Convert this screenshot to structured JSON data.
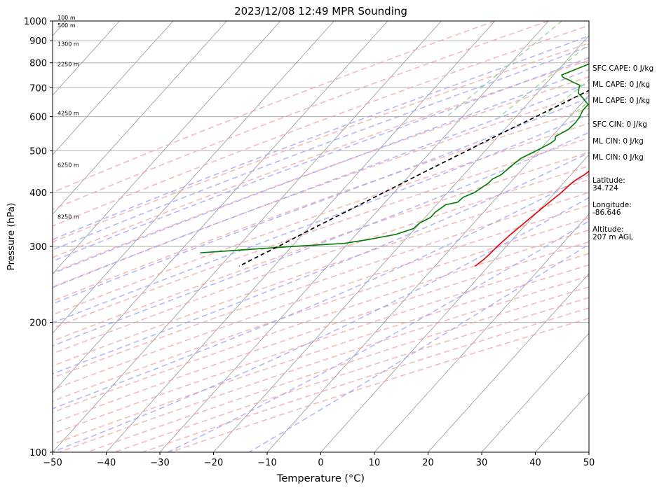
{
  "chart_data": {
    "type": "line",
    "title": "2023/12/08 12:49 MPR Sounding",
    "xlabel": "Temperature (°C)",
    "ylabel": "Pressure (hPa)",
    "xlim": [
      -50,
      50
    ],
    "ylim": [
      1000,
      100
    ],
    "y_scale": "log",
    "skew": true,
    "grid": true,
    "x_ticks": [
      "−50",
      "−40",
      "−30",
      "−20",
      "−10",
      "0",
      "10",
      "20",
      "30",
      "40",
      "50"
    ],
    "x_tick_values": [
      -50,
      -40,
      -30,
      -20,
      -10,
      0,
      10,
      20,
      30,
      40,
      50
    ],
    "y_ticks": [
      "1000",
      "900",
      "800",
      "700",
      "600",
      "500",
      "400",
      "300",
      "200",
      "100"
    ],
    "y_tick_values": [
      1000,
      900,
      800,
      700,
      600,
      500,
      400,
      300,
      200,
      100
    ],
    "series": [
      {
        "color": "#e8080c",
        "style": "solid",
        "points": [
          [
            1000,
            6.3
          ],
          [
            980,
            5.0
          ],
          [
            960,
            4.0
          ],
          [
            940,
            3.7
          ],
          [
            920,
            4.0
          ],
          [
            910,
            5.4
          ],
          [
            895,
            8.2
          ],
          [
            880,
            9.9
          ],
          [
            860,
            11.0
          ],
          [
            840,
            11.9
          ],
          [
            820,
            12.6
          ],
          [
            800,
            13.0
          ],
          [
            780,
            13.0
          ],
          [
            760,
            12.6
          ],
          [
            740,
            11.9
          ],
          [
            720,
            11.0
          ],
          [
            700,
            9.7
          ],
          [
            680,
            8.3
          ],
          [
            660,
            7.7
          ],
          [
            640,
            6.9
          ],
          [
            620,
            6.1
          ],
          [
            600,
            5.8
          ],
          [
            580,
            5.9
          ],
          [
            560,
            5.8
          ],
          [
            540,
            5.6
          ],
          [
            520,
            5.2
          ],
          [
            500,
            4.6
          ],
          [
            480,
            4.0
          ],
          [
            460,
            3.2
          ],
          [
            440,
            2.5
          ],
          [
            430,
            1.9
          ],
          [
            420,
            1.5
          ],
          [
            400,
            1.2
          ],
          [
            380,
            0.6
          ],
          [
            360,
            0.0
          ],
          [
            340,
            -0.6
          ],
          [
            320,
            -1.2
          ],
          [
            300,
            -1.7
          ],
          [
            290,
            -1.8
          ],
          [
            280,
            -2.0
          ],
          [
            270,
            -2.5
          ]
        ]
      },
      {
        "color": "#0a7d0a",
        "style": "solid",
        "points": [
          [
            1000,
            -4.4
          ],
          [
            990,
            -6.2
          ],
          [
            980,
            -7.2
          ],
          [
            970,
            -6.9
          ],
          [
            960,
            -6.8
          ],
          [
            950,
            -7.0
          ],
          [
            940,
            -6.6
          ],
          [
            930,
            -6.6
          ],
          [
            920,
            -7.1
          ],
          [
            900,
            -7.8
          ],
          [
            880,
            -9.5
          ],
          [
            860,
            -11.5
          ],
          [
            850,
            -12.4
          ],
          [
            840,
            -13.6
          ],
          [
            830,
            -13.7
          ],
          [
            825,
            -12.7
          ],
          [
            820,
            -12.8
          ],
          [
            800,
            -14.9
          ],
          [
            780,
            -16.3
          ],
          [
            760,
            -17.7
          ],
          [
            750,
            -18.5
          ],
          [
            740,
            -17.8
          ],
          [
            730,
            -16.3
          ],
          [
            720,
            -15.0
          ],
          [
            710,
            -13.4
          ],
          [
            700,
            -13.1
          ],
          [
            680,
            -12.3
          ],
          [
            660,
            -10.4
          ],
          [
            640,
            -8.6
          ],
          [
            620,
            -8.6
          ],
          [
            600,
            -8.1
          ],
          [
            580,
            -7.9
          ],
          [
            560,
            -8.1
          ],
          [
            540,
            -9.3
          ],
          [
            530,
            -8.8
          ],
          [
            520,
            -9.1
          ],
          [
            500,
            -10.5
          ],
          [
            480,
            -12.1
          ],
          [
            460,
            -12.6
          ],
          [
            440,
            -13.0
          ],
          [
            430,
            -13.9
          ],
          [
            420,
            -14.0
          ],
          [
            400,
            -15.0
          ],
          [
            390,
            -16.3
          ],
          [
            380,
            -16.5
          ],
          [
            375,
            -18.3
          ],
          [
            360,
            -19.0
          ],
          [
            350,
            -19.0
          ],
          [
            340,
            -20.1
          ],
          [
            330,
            -20.3
          ],
          [
            320,
            -22.6
          ],
          [
            312,
            -26.5
          ],
          [
            305,
            -30.7
          ],
          [
            300,
            -40.0
          ],
          [
            295,
            -48.0
          ],
          [
            290,
            -56.0
          ]
        ]
      },
      {
        "color": "#000000",
        "style": "dashed",
        "points": [
          [
            1000,
            6.3
          ],
          [
            975,
            5.8
          ],
          [
            950,
            4.2
          ],
          [
            925,
            2.0
          ],
          [
            900,
            1.0
          ],
          [
            875,
            0.0
          ],
          [
            850,
            -1.5
          ],
          [
            825,
            -2.9
          ],
          [
            800,
            -4.4
          ],
          [
            775,
            -5.8
          ],
          [
            750,
            -7.3
          ],
          [
            725,
            -8.6
          ],
          [
            700,
            -10.2
          ],
          [
            675,
            -11.7
          ],
          [
            650,
            -13.1
          ],
          [
            625,
            -14.7
          ],
          [
            600,
            -16.3
          ],
          [
            575,
            -18.0
          ],
          [
            550,
            -19.8
          ],
          [
            525,
            -21.6
          ],
          [
            500,
            -23.4
          ],
          [
            475,
            -25.4
          ],
          [
            450,
            -27.5
          ],
          [
            425,
            -29.6
          ],
          [
            400,
            -31.9
          ],
          [
            375,
            -34.3
          ],
          [
            350,
            -36.9
          ],
          [
            325,
            -39.7
          ],
          [
            300,
            -42.5
          ],
          [
            285,
            -44.5
          ],
          [
            270,
            -46.5
          ]
        ]
      }
    ],
    "altitude_labels": [
      {
        "p": 1000,
        "label": "100 m"
      },
      {
        "p": 960,
        "label": "500 m"
      },
      {
        "p": 870,
        "label": "1300 m"
      },
      {
        "p": 780,
        "label": "2250 m"
      },
      {
        "p": 600,
        "label": "4250 m"
      },
      {
        "p": 455,
        "label": "6250 m"
      },
      {
        "p": 345,
        "label": "8250 m"
      }
    ],
    "colors": {
      "temperature": "#e8080c",
      "dewpoint": "#0a7d0a",
      "parcel": "#000000",
      "dry_adiabats": "#f2a3a3",
      "moist_adiabats": "#9f9ff5",
      "mixing_ratio": "#96cf96",
      "isotherms": "#999999"
    }
  },
  "info_panel": {
    "sfc_cape": "SFC CAPE: 0 J/kg",
    "ml_cape_1": "ML CAPE: 0 J/kg",
    "ml_cape_2": "ML CAPE: 0 J/kg",
    "sfc_cin": "SFC CIN: 0 J/kg",
    "ml_cin_1": "ML CIN: 0 J/kg",
    "ml_cin_2": "ML CIN: 0 J/kg",
    "latitude_label": "Latitude:",
    "latitude_value": "34.724",
    "longitude_label": "Longitude:",
    "longitude_value": "-86.646",
    "altitude_label": "Altitude:",
    "altitude_value": "207 m AGL"
  }
}
